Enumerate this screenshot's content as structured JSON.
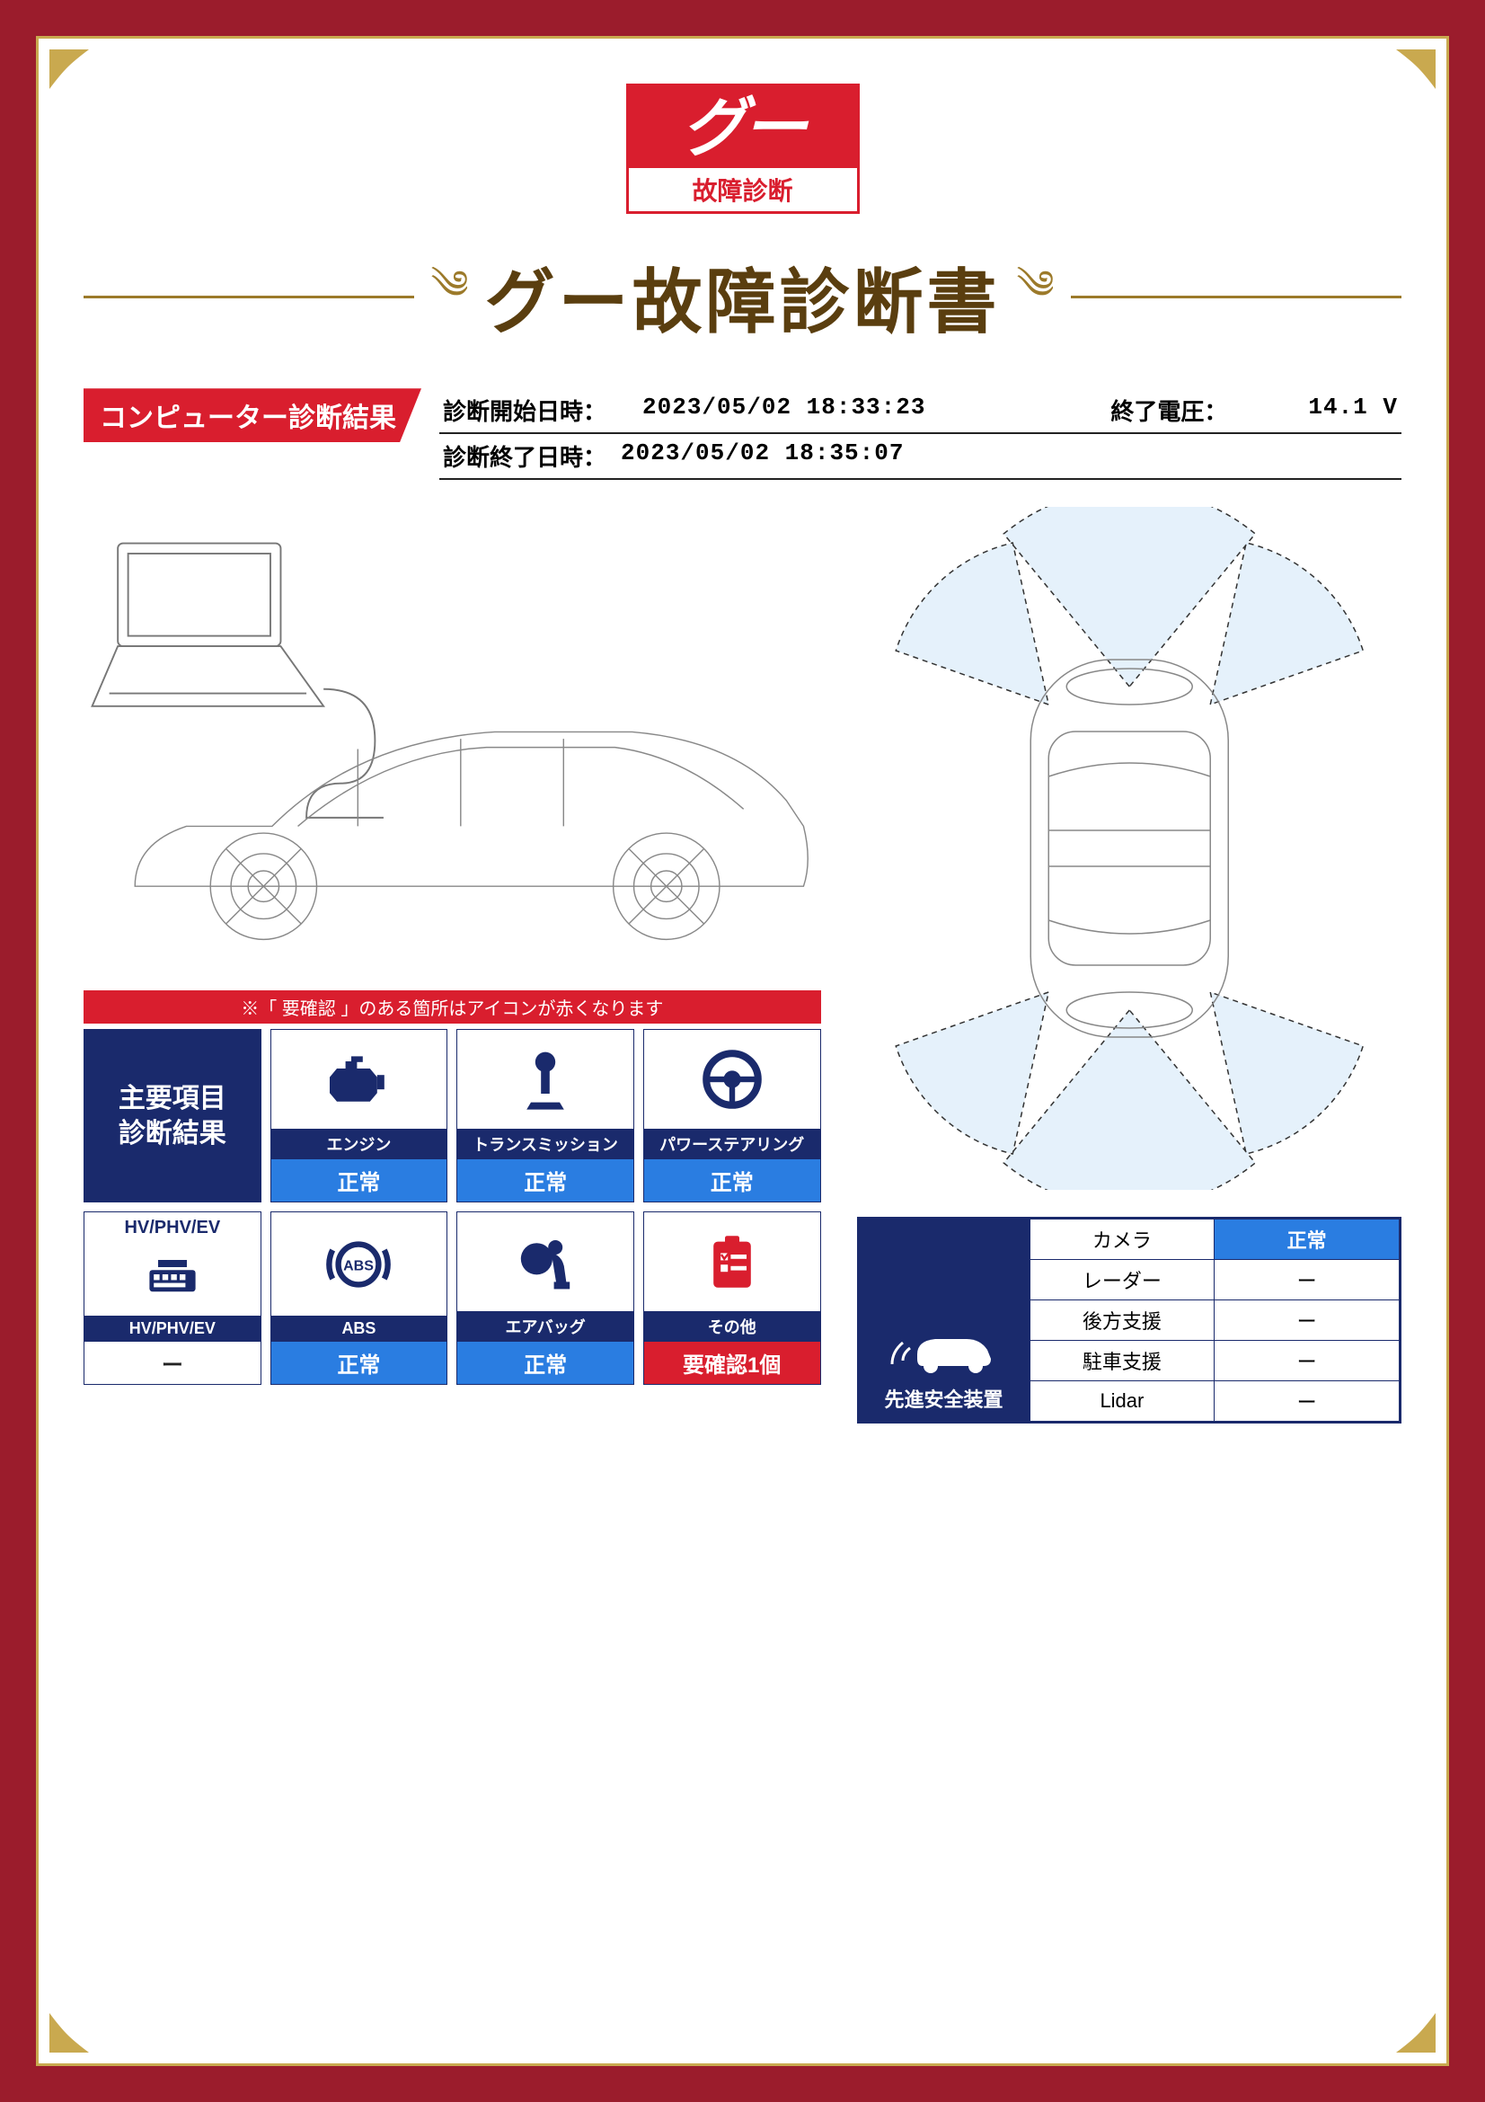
{
  "colors": {
    "outer_bg": "#9b1c2c",
    "gold": "#c9a94f",
    "title_brown": "#5a3e0f",
    "flourish": "#9c7a2a",
    "red": "#d91e2e",
    "navy": "#1a2a6c",
    "blue": "#2a7de1",
    "sensor_fill": "#cfe6f7"
  },
  "logo": {
    "brand": "グー",
    "sub": "故障診断"
  },
  "title": "グー故障診断書",
  "section_header": "コンピューター診断結果",
  "meta": {
    "start_label": "診断開始日時：",
    "start_value": "2023/05/02 18:33:23",
    "volt_label": "終了電圧：",
    "volt_value": "14.1 V",
    "end_label": "診断終了日時：",
    "end_value": "2023/05/02 18:35:07"
  },
  "notice": "※「 要確認 」のある箇所はアイコンが赤くなります",
  "grid_header": "主要項目\n診断結果",
  "items": [
    {
      "key": "engine",
      "label": "エンジン",
      "status": "正常",
      "status_kind": "normal",
      "icon": "engine"
    },
    {
      "key": "trans",
      "label": "トランスミッション",
      "status": "正常",
      "status_kind": "normal",
      "icon": "trans"
    },
    {
      "key": "steer",
      "label": "パワーステアリング",
      "status": "正常",
      "status_kind": "normal",
      "icon": "steer"
    },
    {
      "key": "hv",
      "label": "HV/PHV/EV",
      "status": "ー",
      "status_kind": "dash",
      "icon": "hv",
      "icon_text": "HV/PHV/EV"
    },
    {
      "key": "abs",
      "label": "ABS",
      "status": "正常",
      "status_kind": "normal",
      "icon": "abs"
    },
    {
      "key": "airbag",
      "label": "エアバッグ",
      "status": "正常",
      "status_kind": "normal",
      "icon": "airbag"
    },
    {
      "key": "other",
      "label": "その他",
      "status": "要確認1個",
      "status_kind": "warn",
      "icon": "other"
    }
  ],
  "safety": {
    "header": "先進安全装置",
    "rows": [
      {
        "name": "カメラ",
        "value": "正常",
        "kind": "normal"
      },
      {
        "name": "レーダー",
        "value": "ー",
        "kind": "dash"
      },
      {
        "name": "後方支援",
        "value": "ー",
        "kind": "dash"
      },
      {
        "name": "駐車支援",
        "value": "ー",
        "kind": "dash"
      },
      {
        "name": "Lidar",
        "value": "ー",
        "kind": "dash"
      }
    ]
  }
}
